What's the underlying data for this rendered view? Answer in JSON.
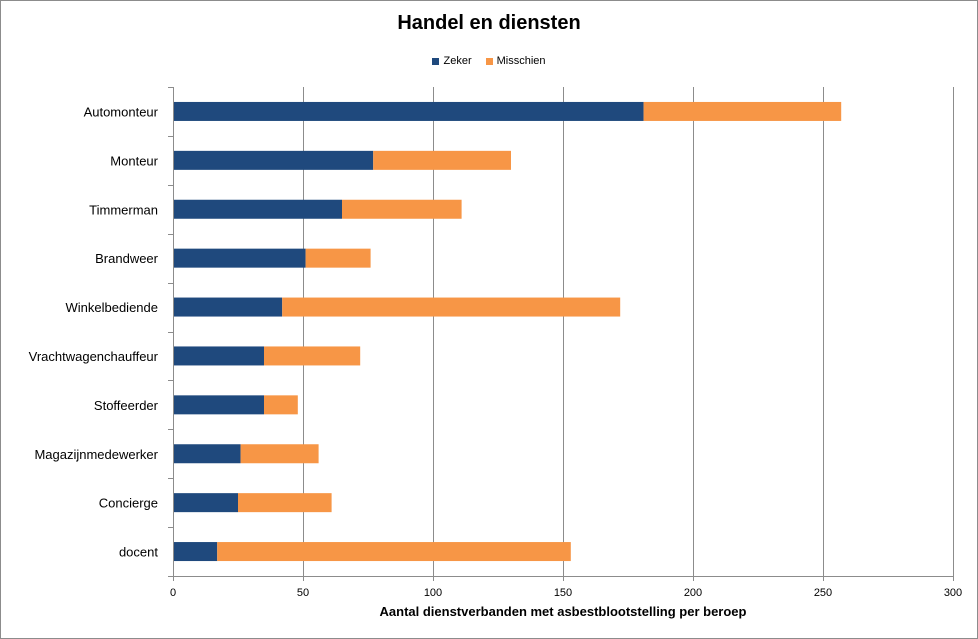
{
  "chart_data": {
    "type": "bar",
    "orientation": "horizontal",
    "stacked": true,
    "title": "Handel en diensten",
    "xlabel": "Aantal dienstverbanden met asbestblootstelling per beroep",
    "ylabel": "",
    "xlim": [
      0,
      300
    ],
    "xticks": [
      0,
      50,
      100,
      150,
      200,
      250,
      300
    ],
    "grid": true,
    "legend_position": "top",
    "categories": [
      "Automonteur",
      "Monteur",
      "Timmerman",
      "Brandweer",
      "Winkelbediende",
      "Vrachtwagenchauffeur",
      "Stoffeerder",
      "Magazijnmedewerker",
      "Concierge",
      "docent"
    ],
    "series": [
      {
        "name": "Zeker",
        "color": "#1f497d",
        "values": [
          181,
          77,
          65,
          51,
          42,
          35,
          35,
          26,
          25,
          17
        ]
      },
      {
        "name": "Misschien",
        "color": "#f79646",
        "values": [
          76,
          53,
          46,
          25,
          130,
          37,
          13,
          30,
          36,
          136
        ]
      }
    ]
  }
}
